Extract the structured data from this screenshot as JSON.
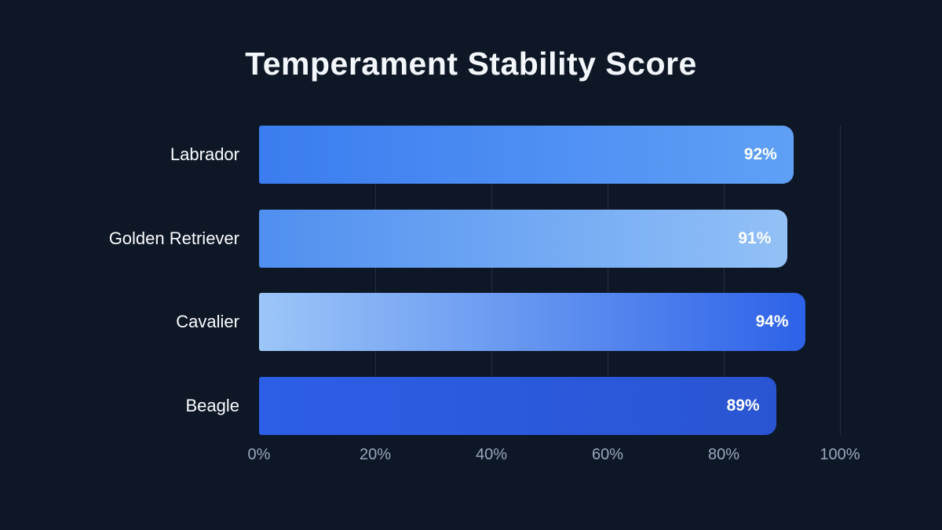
{
  "title": "Temperament Stability Score",
  "chart_data": {
    "type": "bar",
    "orientation": "horizontal",
    "title": "Temperament Stability Score",
    "categories": [
      "Labrador",
      "Golden Retriever",
      "Cavalier",
      "Beagle"
    ],
    "values": [
      92,
      91,
      94,
      89
    ],
    "value_labels": [
      "92%",
      "91%",
      "94%",
      "89%"
    ],
    "xlabel": "",
    "ylabel": "",
    "xlim": [
      0,
      100
    ],
    "x_ticks": [
      "0%",
      "20%",
      "40%",
      "60%",
      "80%",
      "100%"
    ],
    "grid": "vertical-only",
    "legend": "none",
    "bar_gradients": [
      [
        "#3b7cf0",
        "#5fa0f6"
      ],
      [
        "#4f8ff0",
        "#93c1f7"
      ],
      [
        "#9cc6f8",
        "#2d62e8"
      ],
      [
        "#2c5ee6",
        "#2a55d2"
      ]
    ]
  },
  "colors": {
    "background": "#0e1726",
    "title_text": "#f3f6fa",
    "category_text": "#fafcfe",
    "value_text": "#ffffff",
    "tick_text": "#9aa7bd",
    "gridline": "rgba(148,163,184,0.18)"
  }
}
